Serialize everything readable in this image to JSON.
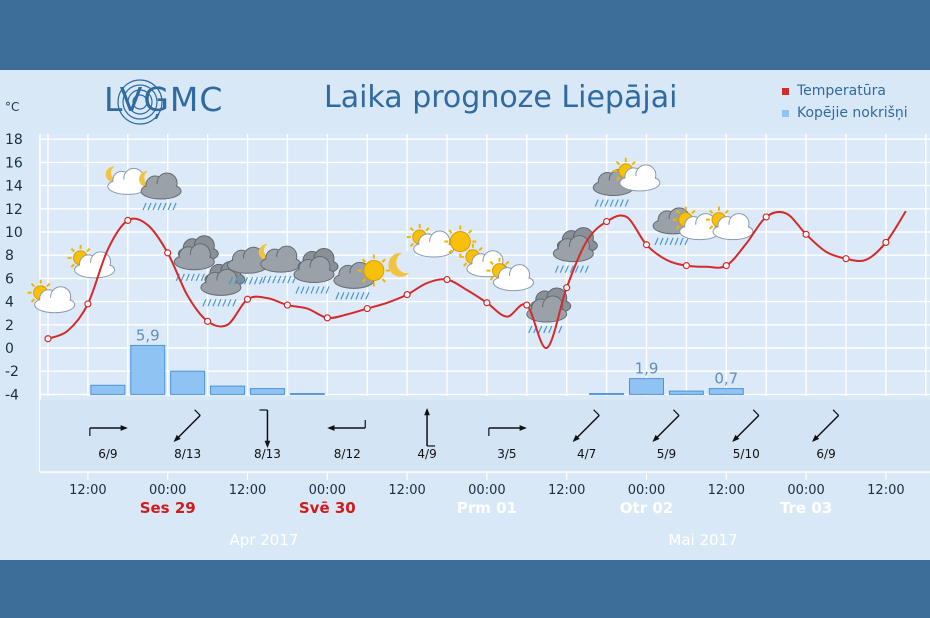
{
  "header": {
    "logo_text": "LVĢMC",
    "title": "Laika prognoze Liepājai",
    "unit": "°C"
  },
  "legend": {
    "temperature": "Temperatūra",
    "precipitation": "Kopējie nokrišņi"
  },
  "colors": {
    "temperature": "#d42a2a",
    "precipitation": "#8ec3f3",
    "precip_edge": "#4f93d6",
    "panel": "#d9e8f7",
    "band": "#3d6d99"
  },
  "chart_data": {
    "type": "line",
    "ylim": [
      -4,
      18
    ],
    "y_ticks": [
      18,
      16,
      14,
      12,
      10,
      8,
      6,
      4,
      2,
      0,
      -2,
      -4
    ],
    "x_tick_labels": [
      "12:00",
      "00:00",
      "12:00",
      "00:00",
      "12:00",
      "00:00",
      "12:00",
      "00:00",
      "12:00",
      "00:00",
      "12:00"
    ],
    "day_labels": [
      {
        "text": "Ses 29",
        "weekend": true
      },
      {
        "text": "Svē 30",
        "weekend": true
      },
      {
        "text": "Prm 01",
        "weekend": false
      },
      {
        "text": "Otr 02",
        "weekend": false
      },
      {
        "text": "Tre 03",
        "weekend": false
      }
    ],
    "month_labels": [
      "Apr 2017",
      "Mai 2017"
    ],
    "series": [
      {
        "name": "Temperatūra",
        "x_hours": [
          0,
          3,
          6,
          9,
          12,
          15,
          18,
          21,
          24,
          27,
          30,
          33,
          36,
          39,
          42,
          45,
          48,
          51,
          54,
          57,
          60,
          63,
          66,
          69,
          72,
          75,
          78,
          81,
          84,
          87,
          90,
          93,
          96,
          99,
          102,
          105,
          108,
          111,
          114,
          117,
          120,
          123,
          126,
          129
        ],
        "values": [
          0.8,
          1.5,
          3.8,
          8.5,
          11.0,
          10.6,
          8.2,
          4.5,
          2.3,
          2.0,
          4.2,
          4.3,
          3.7,
          3.4,
          2.6,
          2.9,
          3.4,
          3.9,
          4.6,
          5.6,
          5.9,
          5.0,
          3.9,
          2.7,
          3.7,
          0.0,
          5.2,
          9.2,
          10.9,
          11.3,
          8.9,
          7.6,
          7.1,
          7.0,
          7.1,
          9.0,
          11.3,
          11.6,
          9.8,
          8.3,
          7.7,
          7.6,
          9.1,
          11.8
        ]
      },
      {
        "name": "Kopējie nokrišņi",
        "type": "bar",
        "x_hours": [
          9,
          15,
          21,
          27,
          33,
          39,
          84,
          90,
          96,
          102
        ],
        "values": [
          1.1,
          5.9,
          2.8,
          1.0,
          0.7,
          0.1,
          0.1,
          1.9,
          0.4,
          0.7
        ]
      }
    ],
    "data_labels": [
      {
        "text": "5,9",
        "x_hour": 15,
        "value": 5.9
      },
      {
        "text": "1,9",
        "x_hour": 90,
        "value": 1.9
      },
      {
        "text": "0,7",
        "x_hour": 102,
        "value": 0.7
      }
    ],
    "wind": [
      "6/9",
      "8/13",
      "8/13",
      "8/12",
      "4/9",
      "3/5",
      "4/7",
      "5/9",
      "5/10",
      "6/9"
    ],
    "wind_directions": [
      "E",
      "SW",
      "S",
      "W",
      "N",
      "E",
      "SW",
      "SW",
      "SW",
      "SW"
    ],
    "weather_icons": [
      {
        "x_hour": 1,
        "icon": "partly-cloudy-day-icon"
      },
      {
        "x_hour": 7,
        "icon": "partly-cloudy-day-icon"
      },
      {
        "x_hour": 12,
        "icon": "partly-cloudy-night-icon"
      },
      {
        "x_hour": 17,
        "icon": "partly-cloudy-night-rain-icon"
      },
      {
        "x_hour": 22,
        "icon": "cloudy-rain-icon"
      },
      {
        "x_hour": 26,
        "icon": "cloudy-rain-icon"
      },
      {
        "x_hour": 30,
        "icon": "partly-cloudy-rain-icon"
      },
      {
        "x_hour": 35,
        "icon": "partly-cloudy-night-rain-icon"
      },
      {
        "x_hour": 40,
        "icon": "cloudy-rain-icon"
      },
      {
        "x_hour": 46,
        "icon": "partly-cloudy-rain-icon"
      },
      {
        "x_hour": 49,
        "icon": "sun-icon"
      },
      {
        "x_hour": 53,
        "icon": "moon-icon"
      },
      {
        "x_hour": 58,
        "icon": "partly-cloudy-day-icon"
      },
      {
        "x_hour": 62,
        "icon": "sun-icon"
      },
      {
        "x_hour": 66,
        "icon": "partly-cloudy-day-icon"
      },
      {
        "x_hour": 70,
        "icon": "partly-cloudy-day-icon"
      },
      {
        "x_hour": 75,
        "icon": "cloudy-rain-icon"
      },
      {
        "x_hour": 79,
        "icon": "cloudy-rain-icon"
      },
      {
        "x_hour": 85,
        "icon": "partly-cloudy-rain-icon"
      },
      {
        "x_hour": 89,
        "icon": "partly-cloudy-day-icon"
      },
      {
        "x_hour": 94,
        "icon": "partly-cloudy-rain-icon"
      },
      {
        "x_hour": 98,
        "icon": "partly-cloudy-day-icon"
      },
      {
        "x_hour": 103,
        "icon": "partly-cloudy-day-icon"
      }
    ]
  }
}
